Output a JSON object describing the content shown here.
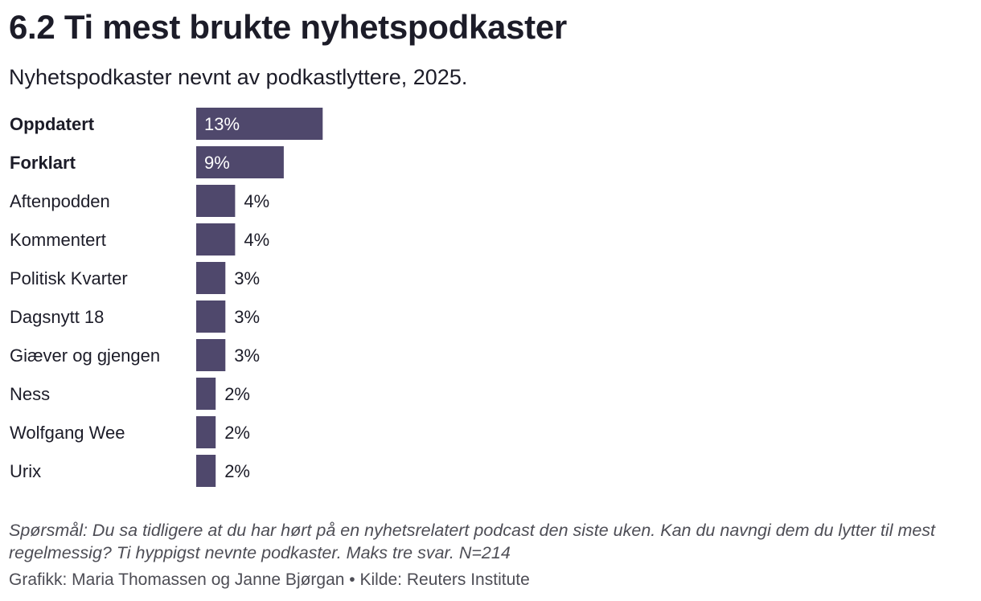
{
  "header": {
    "title": "6.2 Ti mest brukte nyhetspodkaster",
    "subtitle": "Nyhetspodkaster nevnt av podkastlyttere, 2025."
  },
  "chart_data": {
    "type": "bar",
    "orientation": "horizontal",
    "categories": [
      "Oppdatert",
      "Forklart",
      "Aftenpodden",
      "Kommentert",
      "Politisk Kvarter",
      "Dagsnytt 18",
      "Giæver og gjengen",
      "Ness",
      "Wolfgang Wee",
      "Urix"
    ],
    "bold_categories": [
      "Oppdatert",
      "Forklart"
    ],
    "values": [
      13,
      9,
      4,
      4,
      3,
      3,
      3,
      2,
      2,
      2
    ],
    "value_labels": [
      "13%",
      "9%",
      "4%",
      "4%",
      "3%",
      "3%",
      "3%",
      "2%",
      "2%",
      "2%"
    ],
    "unit": "%",
    "bar_color": "#4f486c",
    "grid": false,
    "legend": "none"
  },
  "footer": {
    "note": "Spørsmål: Du sa tidligere at du har hørt på en nyhetsrelatert podcast den siste uken. Kan du navngi dem du lytter til mest regelmessig? Ti hyppigst nevnte podkaster. Maks tre svar. N=214",
    "credit": "Grafikk: Maria Thomassen og Janne Bjørgan • Kilde: Reuters Institute"
  }
}
